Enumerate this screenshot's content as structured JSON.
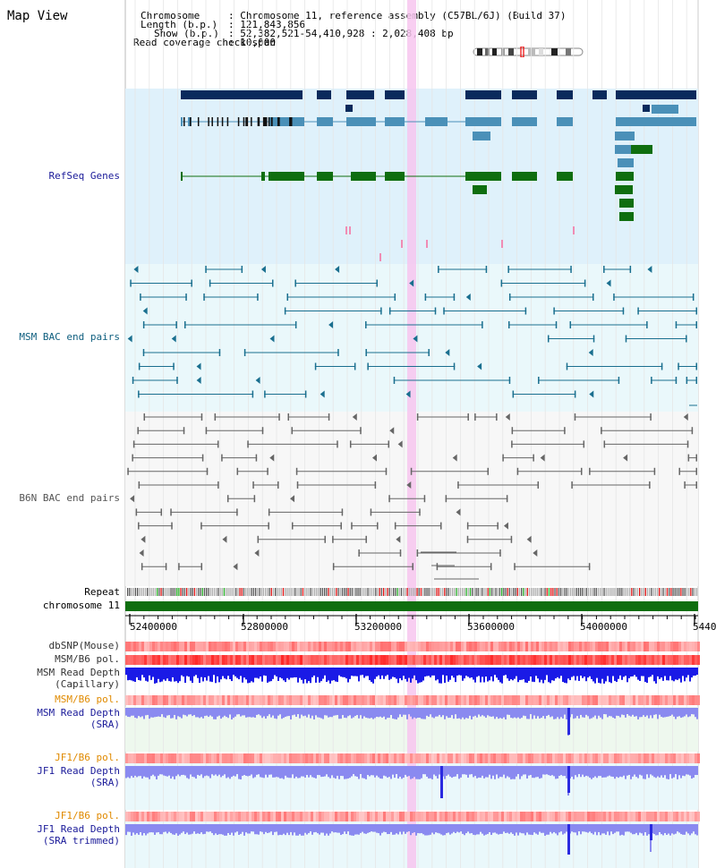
{
  "header": {
    "title": "Map View",
    "chromosome_label": "Chromosome",
    "chromosome_value": ": Chromosome 11, reference assembly (C57BL/6J) (Build 37)",
    "length_label": "Length (b.p.)",
    "length_value": ": 121,843,856",
    "show_label": "Show (b.p.)",
    "show_value": ": 52,382,521-54,410,928 : 2,028,408 bp",
    "span_label": "Read coverage check span",
    "span_value": ": 10,000"
  },
  "tracks": {
    "refseq": "RefSeq Genes",
    "msm_bac": "MSM BAC end pairs",
    "b6n_bac": "B6N BAC end pairs",
    "repeat": "Repeat",
    "chromosome": "chromosome 11",
    "dbsnp": "dbSNP(Mouse)",
    "msm_b6_pol_1": "MSM/B6 pol.",
    "msm_read_depth_cap_1": "MSM Read Depth",
    "msm_read_depth_cap_2": "(Capillary)",
    "msm_b6_pol_2": "MSM/B6 pol.",
    "msm_read_depth_sra_1": "MSM Read Depth",
    "msm_read_depth_sra_2": "(SRA)",
    "jf1_b6_pol_1": "JF1/B6 pol.",
    "jf1_read_depth_sra_1": "JF1 Read Depth",
    "jf1_read_depth_sra_2": "(SRA)",
    "jf1_b6_pol_2": "JF1/B6 pol.",
    "jf1_read_depth_trim_1": "JF1 Read Depth",
    "jf1_read_depth_trim_2": "(SRA trimmed)"
  },
  "axis": {
    "ticks": [
      "52400000",
      "52800000",
      "53200000",
      "53600000",
      "54000000",
      "5440"
    ]
  },
  "colors": {
    "refseq_bg": "#dff1fb",
    "bac_bg": "#eaf8fb",
    "gene_navy": "#0a2a5c",
    "gene_blue": "#4a90b8",
    "gene_green": "#0f6e0f",
    "bac_teal": "#1a6f8f",
    "bac_gray": "#666666",
    "highlight": "#f7c6ee",
    "chromosome_bar": "#0f6e0f",
    "depth_dark": "#1a1ae6",
    "depth_light": "#8a8af0"
  }
}
